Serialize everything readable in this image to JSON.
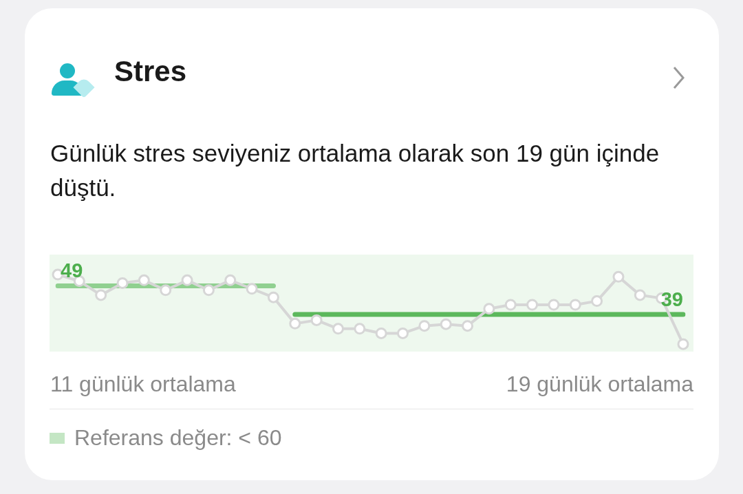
{
  "chart_data": {
    "type": "line",
    "title": "Stres",
    "subtitle": "Günlük stres seviyeniz ortalama olarak son 19 gün içinde düştü.",
    "categories": [
      null,
      null,
      null,
      null,
      null,
      null,
      null,
      null,
      null,
      null,
      null,
      null,
      null,
      null,
      null,
      null,
      null,
      null,
      null,
      null,
      null,
      null,
      null,
      null,
      null,
      null,
      null,
      null,
      null,
      null
    ],
    "series": [
      {
        "color": "#d6d6d6",
        "marker": "circle",
        "values": [
          53,
          50.7,
          45.8,
          50,
          51,
          47.5,
          51,
          47.5,
          51,
          48,
          45,
          35.8,
          37,
          34,
          34,
          32.4,
          32.4,
          35,
          35.6,
          35,
          41,
          42.4,
          42.4,
          42.4,
          42.4,
          43.7,
          52.2,
          45.8,
          44.7,
          28.6
        ]
      },
      {
        "color": "#90d090",
        "marker": "none",
        "values": [
          49,
          49,
          49,
          49,
          49,
          49,
          49,
          49,
          49,
          49,
          49,
          null,
          null,
          null,
          null,
          null,
          null,
          null,
          null,
          null,
          null,
          null,
          null,
          null,
          null,
          null,
          null,
          null,
          null,
          null
        ],
        "value_labels": [
          "49",
          null,
          null,
          null,
          null,
          null,
          null,
          null,
          null,
          null,
          null,
          null,
          null,
          null,
          null,
          null,
          null,
          null,
          null,
          null,
          null,
          null,
          null,
          null,
          null,
          null,
          null,
          null,
          null,
          null
        ]
      },
      {
        "color": "#5cb85c",
        "marker": "none",
        "values": [
          null,
          null,
          null,
          null,
          null,
          null,
          null,
          null,
          null,
          null,
          null,
          39,
          39,
          39,
          39,
          39,
          39,
          39,
          39,
          39,
          39,
          39,
          39,
          39,
          39,
          39,
          39,
          39,
          39,
          39
        ],
        "value_labels": [
          null,
          null,
          null,
          null,
          null,
          null,
          null,
          null,
          null,
          null,
          null,
          null,
          null,
          null,
          null,
          null,
          null,
          null,
          null,
          null,
          null,
          null,
          null,
          null,
          null,
          null,
          null,
          null,
          null,
          "39"
        ]
      }
    ],
    "ylim": [
      26,
      60
    ],
    "tick_labels": false,
    "bands": [
      {
        "axis": "y",
        "from": 26,
        "to": 60,
        "label": "Referans değer: < 60",
        "color": "#eef8ee"
      }
    ],
    "legend": "bottom",
    "annotations": [
      "11 günlük ortalama",
      "19 günlük ortalama"
    ]
  }
}
